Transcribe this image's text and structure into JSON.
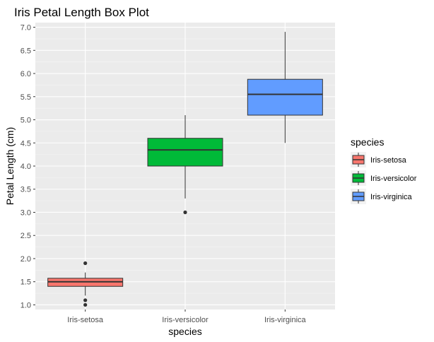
{
  "chart_data": {
    "type": "box",
    "title": "Iris Petal Length Box Plot",
    "xlabel": "species",
    "ylabel": "Petal Length (cm)",
    "ylim": [
      0.9,
      7.1
    ],
    "yticks": [
      1.0,
      1.5,
      2.0,
      2.5,
      3.0,
      3.5,
      4.0,
      4.5,
      5.0,
      5.5,
      6.0,
      6.5,
      7.0
    ],
    "ytick_labels": [
      "1.0",
      "1.5",
      "2.0",
      "2.5",
      "3.0",
      "3.5",
      "4.0",
      "4.5",
      "5.0",
      "5.5",
      "6.0",
      "6.5",
      "7.0"
    ],
    "categories": [
      "Iris-setosa",
      "Iris-versicolor",
      "Iris-virginica"
    ],
    "grid": true,
    "legend": {
      "title": "species",
      "position": "right"
    },
    "series": [
      {
        "name": "Iris-setosa",
        "color": "#F8766D",
        "whisker_low": 1.2,
        "q1": 1.4,
        "median": 1.5,
        "q3": 1.575,
        "whisker_high": 1.7,
        "outliers": [
          1.0,
          1.1,
          1.9
        ]
      },
      {
        "name": "Iris-versicolor",
        "color": "#00BA38",
        "whisker_low": 3.3,
        "q1": 4.0,
        "median": 4.35,
        "q3": 4.6,
        "whisker_high": 5.1,
        "outliers": [
          3.0
        ]
      },
      {
        "name": "Iris-virginica",
        "color": "#619CFF",
        "whisker_low": 4.5,
        "q1": 5.1,
        "median": 5.55,
        "q3": 5.875,
        "whisker_high": 6.9,
        "outliers": []
      }
    ]
  }
}
